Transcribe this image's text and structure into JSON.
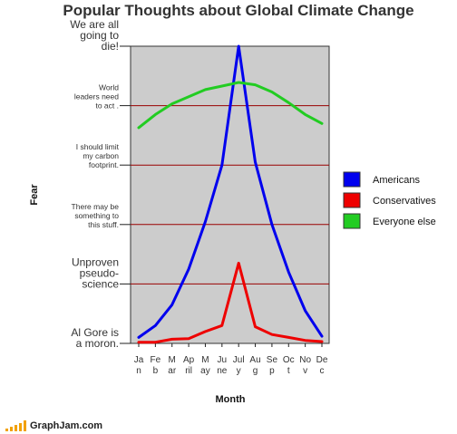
{
  "chart_data": {
    "type": "line",
    "title": "Popular Thoughts about Global Climate Change",
    "xlabel": "Month",
    "ylabel": "Fear",
    "categories": [
      [
        "Ja",
        "n"
      ],
      [
        "Fe",
        "b"
      ],
      [
        "M",
        "ar"
      ],
      [
        "Ap",
        "ril"
      ],
      [
        "M",
        "ay"
      ],
      [
        "Ju",
        "ne"
      ],
      [
        "Jul",
        "y"
      ],
      [
        "Au",
        "g"
      ],
      [
        "Se",
        "p"
      ],
      [
        "Oc",
        "t"
      ],
      [
        "No",
        "v"
      ],
      [
        "De",
        "c"
      ]
    ],
    "y_levels": [
      {
        "lines": [
          "Al Gore is",
          "a moron."
        ],
        "size": "big"
      },
      {
        "lines": [
          "Unproven",
          "pseudo-",
          "science"
        ],
        "size": "big"
      },
      {
        "lines": [
          "There may be",
          "something to",
          "this  stuff."
        ],
        "size": "small"
      },
      {
        "lines": [
          "I should limit",
          "my carbon",
          "footprint."
        ],
        "size": "small"
      },
      {
        "lines": [
          "World",
          "leaders need",
          "to act ."
        ],
        "size": "small"
      },
      {
        "lines": [
          "We are all",
          "going to",
          "die!"
        ],
        "size": "big"
      }
    ],
    "ylim": [
      0,
      5
    ],
    "grid": true,
    "legend_position": "right",
    "series": [
      {
        "name": "Americans",
        "color": "#0000ee",
        "values": [
          0.1,
          0.3,
          0.65,
          1.25,
          2.05,
          3.0,
          5.0,
          3.05,
          2.0,
          1.2,
          0.55,
          0.12
        ]
      },
      {
        "name": "Conservatives",
        "color": "#ee0000",
        "values": [
          0.02,
          0.02,
          0.07,
          0.08,
          0.2,
          0.3,
          1.35,
          0.28,
          0.15,
          0.1,
          0.05,
          0.03
        ]
      },
      {
        "name": "Everyone else",
        "color": "#22cc22",
        "values": [
          3.63,
          3.85,
          4.03,
          4.15,
          4.27,
          4.33,
          4.39,
          4.35,
          4.23,
          4.05,
          3.85,
          3.7
        ]
      }
    ]
  },
  "footer": {
    "brand": "GraphJam.com",
    "bar_color": "#f2a100"
  }
}
